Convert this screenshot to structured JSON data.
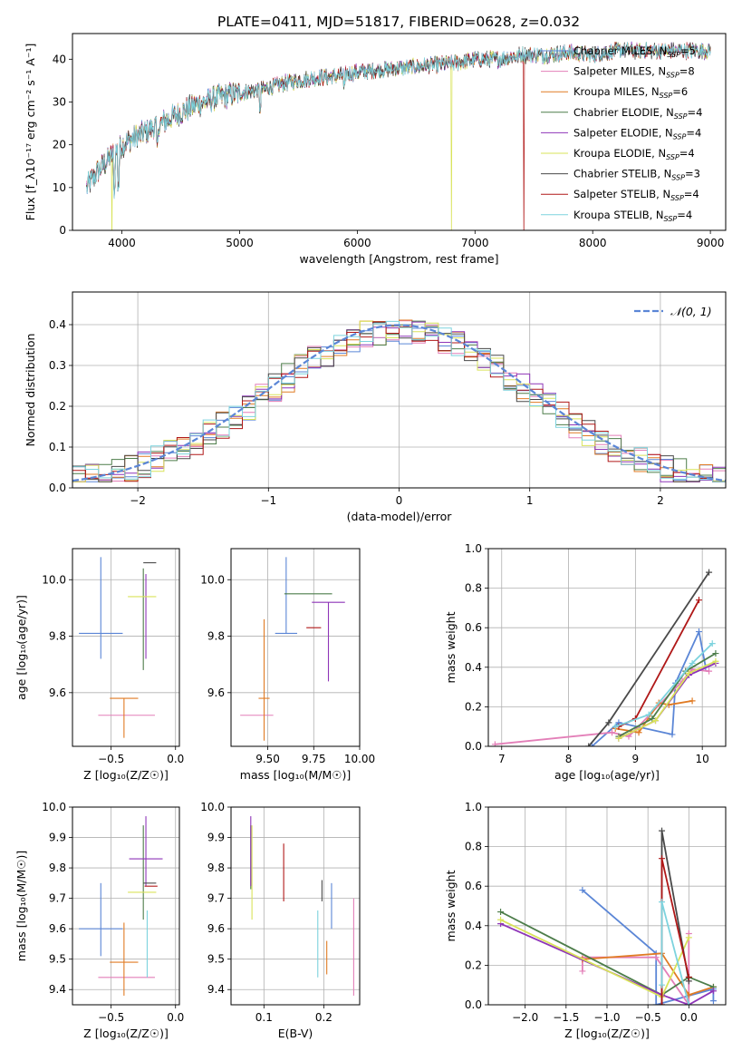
{
  "title": "PLATE=0411, MJD=51817, FIBERID=0628, z=0.032",
  "colors": {
    "Chabrier MILES": "#5b86d6",
    "Salpeter MILES": "#e37fb8",
    "Kroupa MILES": "#e07b24",
    "Chabrier ELODIE": "#4d7d4a",
    "Salpeter ELODIE": "#8e35b8",
    "Kroupa ELODIE": "#d9e35a",
    "Chabrier STELIB": "#4a4a4a",
    "Salpeter STELIB": "#b01818",
    "Kroupa STELIB": "#7dd3de",
    "normal": "#5b86d6",
    "grid": "#b0b0b0"
  },
  "chart_data": [
    {
      "id": "spectrum",
      "type": "line",
      "title": "PLATE=0411, MJD=51817, FIBERID=0628, z=0.032",
      "xlabel": "wavelength [Angstrom, rest frame]",
      "ylabel": "Flux [f_λ10⁻¹⁷ erg cm⁻² s⁻¹ A⁻¹]",
      "xlim": [
        3580,
        9130
      ],
      "ylim": [
        0,
        46
      ],
      "xticks": [
        "4000",
        "5000",
        "6000",
        "7000",
        "8000",
        "9000"
      ],
      "yticks": [
        "0",
        "10",
        "20",
        "30",
        "40"
      ],
      "grid": false,
      "legend_position": "upper-right",
      "series": [
        {
          "name": "Chabrier MILES, N_SSP=5",
          "label_main": "Chabrier MILES, N",
          "label_sub": "SSP",
          "label_end": "=5"
        },
        {
          "name": "Salpeter MILES, N_SSP=8",
          "label_main": "Salpeter MILES, N",
          "label_sub": "SSP",
          "label_end": "=8"
        },
        {
          "name": "Kroupa MILES, N_SSP=6",
          "label_main": "Kroupa MILES, N",
          "label_sub": "SSP",
          "label_end": "=6"
        },
        {
          "name": "Chabrier ELODIE, N_SSP=4",
          "label_main": "Chabrier ELODIE, N",
          "label_sub": "SSP",
          "label_end": "=4"
        },
        {
          "name": "Salpeter ELODIE, N_SSP=4",
          "label_main": "Salpeter ELODIE, N",
          "label_sub": "SSP",
          "label_end": "=4"
        },
        {
          "name": "Kroupa ELODIE, N_SSP=4",
          "label_main": "Kroupa ELODIE, N",
          "label_sub": "SSP",
          "label_end": "=4"
        },
        {
          "name": "Chabrier STELIB, N_SSP=3",
          "label_main": "Chabrier STELIB, N",
          "label_sub": "SSP",
          "label_end": "=3"
        },
        {
          "name": "Salpeter STELIB, N_SSP=4",
          "label_main": "Salpeter STELIB, N",
          "label_sub": "SSP",
          "label_end": "=4"
        },
        {
          "name": "Kroupa STELIB, N_SSP=4",
          "label_main": "Kroupa STELIB, N",
          "label_sub": "SSP",
          "label_end": "=4"
        }
      ],
      "continuum": [
        [
          3700,
          10
        ],
        [
          3800,
          14
        ],
        [
          3900,
          17
        ],
        [
          4000,
          20
        ],
        [
          4200,
          23
        ],
        [
          4400,
          26
        ],
        [
          4600,
          29
        ],
        [
          4800,
          31
        ],
        [
          5000,
          32
        ],
        [
          5200,
          33
        ],
        [
          5400,
          34.5
        ],
        [
          5600,
          35.5
        ],
        [
          5800,
          36
        ],
        [
          6000,
          37
        ],
        [
          6200,
          37.5
        ],
        [
          6400,
          38
        ],
        [
          6600,
          38.5
        ],
        [
          6800,
          39
        ],
        [
          7000,
          40
        ],
        [
          7200,
          40
        ],
        [
          7400,
          41
        ],
        [
          7600,
          41
        ],
        [
          7800,
          41.5
        ],
        [
          8000,
          41
        ],
        [
          8200,
          42
        ],
        [
          8400,
          42
        ],
        [
          8600,
          42
        ],
        [
          8800,
          42
        ],
        [
          9000,
          42
        ]
      ],
      "dropouts": [
        {
          "series": "Kroupa ELODIE, N_SSP=4",
          "x": 3915
        },
        {
          "series": "Kroupa ELODIE, N_SSP=4",
          "x": 6800
        },
        {
          "series": "Salpeter STELIB, N_SSP=4",
          "x": 7415
        }
      ]
    },
    {
      "id": "residuals",
      "type": "step-histogram",
      "xlabel": "(data-model)/error",
      "ylabel": "Normed distribution",
      "xlim": [
        -2.5,
        2.5
      ],
      "ylim": [
        0,
        0.48
      ],
      "xticks": [
        "−2",
        "−1",
        "0",
        "1",
        "2"
      ],
      "yticks": [
        "0.0",
        "0.1",
        "0.2",
        "0.3",
        "0.4"
      ],
      "grid": true,
      "legend": [
        {
          "name": "𝒩(0, 1)",
          "style": "dashed"
        }
      ]
    },
    {
      "id": "age-vs-Z",
      "type": "errorbar",
      "xlabel": "Z [log₁₀(Z/Z☉)]",
      "ylabel": "age  [log₁₀(age/yr)]",
      "xlim": [
        -0.8,
        0.03
      ],
      "ylim": [
        9.41,
        10.11
      ],
      "xticks": [
        "−0.5",
        "0.0"
      ],
      "yticks": [
        "9.6",
        "9.8",
        "10.0"
      ],
      "grid": true,
      "points": [
        {
          "series": "Chabrier MILES",
          "x": -0.58,
          "xerr": 0.17,
          "y": 9.81,
          "yerr": [
            0.09,
            0.27
          ]
        },
        {
          "series": "Salpeter MILES",
          "x": -0.38,
          "xerr": 0.22,
          "y": 9.52,
          "yerr": [
            0.0,
            0.0
          ]
        },
        {
          "series": "Kroupa MILES",
          "x": -0.4,
          "xerr": 0.11,
          "y": 9.58,
          "yerr": [
            0.14,
            0.0
          ]
        },
        {
          "series": "Chabrier ELODIE",
          "x": -0.25,
          "xerr": 0.0,
          "y": 9.95,
          "yerr": [
            0.27,
            0.09
          ]
        },
        {
          "series": "Salpeter ELODIE",
          "x": -0.23,
          "xerr": 0.0,
          "y": 9.92,
          "yerr": [
            0.2,
            0.1
          ]
        },
        {
          "series": "Kroupa ELODIE",
          "x": -0.26,
          "xerr": 0.11,
          "y": 9.94,
          "yerr": [
            0.0,
            0.0
          ]
        },
        {
          "series": "Chabrier STELIB",
          "x": -0.2,
          "xerr": 0.05,
          "y": 10.06,
          "yerr": [
            0.0,
            0.0
          ]
        },
        {
          "series": "Salpeter STELIB",
          "x": -0.19,
          "xerr": 0.0,
          "y": 9.83,
          "yerr": [
            0.0,
            0.0
          ]
        },
        {
          "series": "Kroupa STELIB",
          "x": -0.22,
          "xerr": 0.0,
          "y": 9.9,
          "yerr": [
            0.0,
            0.0
          ]
        }
      ]
    },
    {
      "id": "age-vs-mass",
      "type": "errorbar",
      "xlabel": "mass [log₁₀(M/M☉)]",
      "ylabel": "",
      "xlim": [
        9.3,
        10.0
      ],
      "ylim": [
        9.41,
        10.11
      ],
      "xticks": [
        "9.50",
        "9.75",
        "10.00"
      ],
      "yticks": [
        "9.6",
        "9.8",
        "10.0"
      ],
      "grid": true,
      "points": [
        {
          "series": "Chabrier MILES",
          "x": 9.6,
          "xerr": 0.06,
          "y": 9.81,
          "yerr": [
            0.0,
            0.27
          ]
        },
        {
          "series": "Salpeter MILES",
          "x": 9.44,
          "xerr": 0.09,
          "y": 9.52,
          "yerr": [
            0.0,
            0.0
          ]
        },
        {
          "series": "Kroupa MILES",
          "x": 9.48,
          "xerr": 0.03,
          "y": 9.58,
          "yerr": [
            0.15,
            0.28
          ]
        },
        {
          "series": "Chabrier ELODIE",
          "x": 9.72,
          "xerr": 0.13,
          "y": 9.95,
          "yerr": [
            0.0,
            0.0
          ]
        },
        {
          "series": "Salpeter ELODIE",
          "x": 9.83,
          "xerr": 0.09,
          "y": 9.92,
          "yerr": [
            0.28,
            0.0
          ]
        },
        {
          "series": "Kroupa ELODIE",
          "x": 9.74,
          "xerr": 0.0,
          "y": 9.94,
          "yerr": [
            0.0,
            0.0
          ]
        },
        {
          "series": "Chabrier STELIB",
          "x": 9.68,
          "xerr": 0.0,
          "y": 10.06,
          "yerr": [
            0.0,
            0.0
          ]
        },
        {
          "series": "Salpeter STELIB",
          "x": 9.75,
          "xerr": 0.04,
          "y": 9.83,
          "yerr": [
            0.0,
            0.0
          ]
        },
        {
          "series": "Kroupa STELIB",
          "x": 9.62,
          "xerr": 0.0,
          "y": 9.95,
          "yerr": [
            0.0,
            0.0
          ]
        }
      ]
    },
    {
      "id": "weight-vs-age",
      "type": "line",
      "xlabel": "age  [log₁₀(age/yr)]",
      "ylabel": "mass weight",
      "xlim": [
        6.8,
        10.35
      ],
      "ylim": [
        0,
        1.0
      ],
      "xticks": [
        "7",
        "8",
        "9",
        "10"
      ],
      "yticks": [
        "0.0",
        "0.2",
        "0.4",
        "0.6",
        "0.8",
        "1.0"
      ],
      "grid": true,
      "series": [
        {
          "name": "Chabrier MILES",
          "x": [
            8.35,
            8.75,
            9.55,
            9.6,
            9.95,
            10.05
          ],
          "y": [
            0.0,
            0.12,
            0.06,
            0.32,
            0.58,
            0.4
          ]
        },
        {
          "name": "Salpeter MILES",
          "x": [
            6.9,
            8.65,
            8.9,
            9.7,
            9.85,
            10.1
          ],
          "y": [
            0.01,
            0.07,
            0.05,
            0.33,
            0.39,
            0.38
          ]
        },
        {
          "name": "Kroupa MILES",
          "x": [
            8.7,
            9.05,
            9.35,
            9.5,
            9.85
          ],
          "y": [
            0.09,
            0.07,
            0.22,
            0.21,
            0.23
          ]
        },
        {
          "name": "Chabrier ELODIE",
          "x": [
            8.75,
            9.25,
            9.75,
            10.2
          ],
          "y": [
            0.05,
            0.14,
            0.38,
            0.47
          ]
        },
        {
          "name": "Salpeter ELODIE",
          "x": [
            8.75,
            9.3,
            9.8,
            10.2
          ],
          "y": [
            0.04,
            0.13,
            0.36,
            0.42
          ]
        },
        {
          "name": "Kroupa ELODIE",
          "x": [
            8.75,
            9.3,
            9.8,
            10.2
          ],
          "y": [
            0.04,
            0.13,
            0.37,
            0.43
          ]
        },
        {
          "name": "Chabrier STELIB",
          "x": [
            8.3,
            8.6,
            10.1
          ],
          "y": [
            0.0,
            0.12,
            0.88
          ]
        },
        {
          "name": "Salpeter STELIB",
          "x": [
            8.75,
            9.0,
            9.95
          ],
          "y": [
            0.1,
            0.14,
            0.74
          ]
        },
        {
          "name": "Kroupa STELIB",
          "x": [
            8.7,
            9.2,
            9.85,
            10.15
          ],
          "y": [
            0.1,
            0.16,
            0.42,
            0.52
          ]
        }
      ]
    },
    {
      "id": "mass-vs-Z",
      "type": "errorbar",
      "xlabel": "Z [log₁₀(Z/Z☉)]",
      "ylabel": "mass [log₁₀(M/M☉)]",
      "xlim": [
        -0.8,
        0.03
      ],
      "ylim": [
        9.35,
        10.0
      ],
      "xticks": [
        "−0.5",
        "0.0"
      ],
      "yticks": [
        "9.4",
        "9.5",
        "9.6",
        "9.7",
        "9.8",
        "9.9",
        "10.0"
      ],
      "grid": true,
      "points": [
        {
          "series": "Chabrier MILES",
          "x": -0.58,
          "xerr": 0.17,
          "y": 9.6,
          "yerr": [
            0.09,
            0.15
          ]
        },
        {
          "series": "Salpeter MILES",
          "x": -0.38,
          "xerr": 0.22,
          "y": 9.44,
          "yerr": [
            0.0,
            0.0
          ]
        },
        {
          "series": "Kroupa MILES",
          "x": -0.4,
          "xerr": 0.11,
          "y": 9.49,
          "yerr": [
            0.11,
            0.13
          ]
        },
        {
          "series": "Chabrier ELODIE",
          "x": -0.25,
          "xerr": 0.0,
          "y": 9.73,
          "yerr": [
            0.1,
            0.21
          ]
        },
        {
          "series": "Salpeter ELODIE",
          "x": -0.23,
          "xerr": 0.13,
          "y": 9.83,
          "yerr": [
            0.09,
            0.14
          ]
        },
        {
          "series": "Kroupa ELODIE",
          "x": -0.26,
          "xerr": 0.11,
          "y": 9.72,
          "yerr": [
            0.0,
            0.0
          ]
        },
        {
          "series": "Chabrier STELIB",
          "x": -0.2,
          "xerr": 0.05,
          "y": 9.75,
          "yerr": [
            0.0,
            0.0
          ]
        },
        {
          "series": "Salpeter STELIB",
          "x": -0.19,
          "xerr": 0.05,
          "y": 9.74,
          "yerr": [
            0.0,
            0.0
          ]
        },
        {
          "series": "Kroupa STELIB",
          "x": -0.22,
          "xerr": 0.0,
          "y": 9.66,
          "yerr": [
            0.22,
            0.0
          ]
        }
      ]
    },
    {
      "id": "mass-vs-EBV",
      "type": "errorbar",
      "xlabel": "E(B-V)",
      "ylabel": "",
      "xlim": [
        0.045,
        0.26
      ],
      "ylim": [
        9.35,
        10.0
      ],
      "xticks": [
        "0.1",
        "0.2"
      ],
      "yticks": [
        "9.4",
        "9.5",
        "9.6",
        "9.7",
        "9.8",
        "9.9",
        "10.0"
      ],
      "grid": true,
      "points": [
        {
          "series": "Chabrier MILES",
          "x": 0.213,
          "y": 9.6,
          "yerr": [
            0.0,
            0.15
          ]
        },
        {
          "series": "Salpeter MILES",
          "x": 0.25,
          "y": 9.44,
          "yerr": [
            0.06,
            0.26
          ]
        },
        {
          "series": "Kroupa MILES",
          "x": 0.205,
          "y": 9.49,
          "yerr": [
            0.04,
            0.07
          ]
        },
        {
          "series": "Chabrier ELODIE",
          "x": 0.078,
          "y": 9.73,
          "yerr": [
            0.0,
            0.21
          ]
        },
        {
          "series": "Salpeter ELODIE",
          "x": 0.078,
          "y": 9.83,
          "yerr": [
            0.09,
            0.14
          ]
        },
        {
          "series": "Kroupa ELODIE",
          "x": 0.08,
          "y": 9.72,
          "yerr": [
            0.09,
            0.22
          ]
        },
        {
          "series": "Chabrier STELIB",
          "x": 0.197,
          "y": 9.75,
          "yerr": [
            0.06,
            0.01
          ]
        },
        {
          "series": "Salpeter STELIB",
          "x": 0.133,
          "y": 9.74,
          "yerr": [
            0.05,
            0.14
          ]
        },
        {
          "series": "Kroupa STELIB",
          "x": 0.19,
          "y": 9.66,
          "yerr": [
            0.22,
            0.0
          ]
        }
      ]
    },
    {
      "id": "weight-vs-Z",
      "type": "line",
      "xlabel": "Z [log₁₀(Z/Z☉)]",
      "ylabel": "mass weight",
      "xlim": [
        -2.45,
        0.45
      ],
      "ylim": [
        0,
        1.0
      ],
      "xticks": [
        "−2.0",
        "−1.5",
        "−1.0",
        "−0.5",
        "0.0"
      ],
      "yticks": [
        "0.0",
        "0.2",
        "0.4",
        "0.6",
        "0.8",
        "1.0"
      ],
      "grid": true,
      "series": [
        {
          "name": "Chabrier MILES",
          "x": [
            -1.3,
            -0.4,
            -0.4,
            0.3,
            0.3
          ],
          "y": [
            0.58,
            0.26,
            0.0,
            0.08,
            0.02
          ]
        },
        {
          "name": "Salpeter MILES",
          "x": [
            -1.3,
            -1.3,
            -0.4,
            0.0,
            0.0
          ],
          "y": [
            0.17,
            0.24,
            0.24,
            0.0,
            0.36
          ]
        },
        {
          "name": "Kroupa MILES",
          "x": [
            -1.3,
            -0.33,
            0.0,
            0.3
          ],
          "y": [
            0.23,
            0.26,
            0.05,
            0.09
          ]
        },
        {
          "name": "Chabrier ELODIE",
          "x": [
            -2.3,
            -0.33,
            0.0,
            0.3
          ],
          "y": [
            0.47,
            0.05,
            0.14,
            0.09
          ]
        },
        {
          "name": "Salpeter ELODIE",
          "x": [
            -2.3,
            -0.33,
            0.0,
            0.3
          ],
          "y": [
            0.41,
            0.05,
            0.0,
            0.07
          ]
        },
        {
          "name": "Kroupa ELODIE",
          "x": [
            -2.3,
            -0.33,
            0.0
          ],
          "y": [
            0.43,
            0.04,
            0.34
          ]
        },
        {
          "name": "Chabrier STELIB",
          "x": [
            -0.33,
            -0.33,
            0.0
          ],
          "y": [
            0.0,
            0.88,
            0.12
          ]
        },
        {
          "name": "Salpeter STELIB",
          "x": [
            -0.33,
            -0.33,
            0.0
          ],
          "y": [
            0.0,
            0.74,
            0.14
          ]
        },
        {
          "name": "Kroupa STELIB",
          "x": [
            -0.33,
            -0.33,
            0.0
          ],
          "y": [
            0.1,
            0.52,
            0.0
          ]
        }
      ]
    }
  ]
}
